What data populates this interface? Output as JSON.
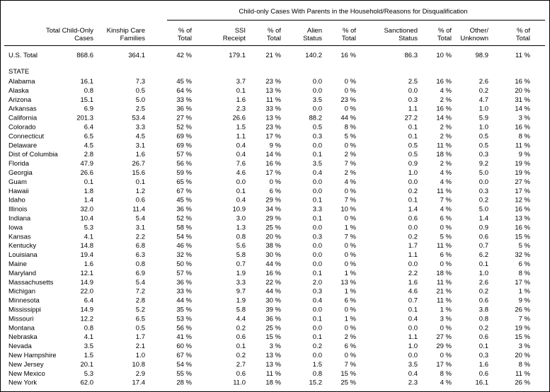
{
  "table": {
    "group_header": "Child-only Cases With Parents in the Household/Reasons for Disqualification",
    "columns": [
      [
        "Total Child-Only",
        "Cases"
      ],
      [
        "Kinship Care",
        "Families"
      ],
      [
        "% of",
        "Total"
      ],
      [
        "SSI",
        "Receipt"
      ],
      [
        "% of",
        "Total"
      ],
      [
        "Alien",
        "Status"
      ],
      [
        "% of",
        "Total"
      ],
      [
        "Sanctioned",
        "Status"
      ],
      [
        "% of",
        "Total"
      ],
      [
        "Other/",
        "Unknown"
      ],
      [
        "% of",
        "Total"
      ]
    ],
    "total_row": [
      "U.S. Total",
      "868.6",
      "364.1",
      "42 %",
      "179.1",
      "21 %",
      "140.2",
      "16 %",
      "86.3",
      "10 %",
      "98.9",
      "11 %"
    ],
    "section_label": "STATE",
    "rows": [
      [
        "Alabama",
        "16.1",
        "7.3",
        "45 %",
        "3.7",
        "23 %",
        "0.0",
        "0 %",
        "2.5",
        "16 %",
        "2.6",
        "16 %"
      ],
      [
        "Alaska",
        "0.8",
        "0.5",
        "64 %",
        "0.1",
        "13 %",
        "0.0",
        "0 %",
        "0.0",
        "4 %",
        "0.2",
        "20 %"
      ],
      [
        "Arizona",
        "15.1",
        "5.0",
        "33 %",
        "1.6",
        "11 %",
        "3.5",
        "23 %",
        "0.3",
        "2 %",
        "4.7",
        "31 %"
      ],
      [
        "Arkansas",
        "6.9",
        "2.5",
        "36 %",
        "2.3",
        "33 %",
        "0.0",
        "0 %",
        "1.1",
        "16 %",
        "1.0",
        "14 %"
      ],
      [
        "California",
        "201.3",
        "53.4",
        "27 %",
        "26.6",
        "13 %",
        "88.2",
        "44 %",
        "27.2",
        "14 %",
        "5.9",
        "3 %"
      ],
      [
        "Colorado",
        "6.4",
        "3.3",
        "52 %",
        "1.5",
        "23 %",
        "0.5",
        "8 %",
        "0.1",
        "2 %",
        "1.0",
        "16 %"
      ],
      [
        "Connecticut",
        "6.5",
        "4.5",
        "69 %",
        "1.1",
        "17 %",
        "0.3",
        "5 %",
        "0.1",
        "2 %",
        "0.5",
        "8 %"
      ],
      [
        "Delaware",
        "4.5",
        "3.1",
        "69 %",
        "0.4",
        "9 %",
        "0.0",
        "0 %",
        "0.5",
        "11 %",
        "0.5",
        "11 %"
      ],
      [
        "Dist of Columbia",
        "2.8",
        "1.6",
        "57 %",
        "0.4",
        "14 %",
        "0.1",
        "2 %",
        "0.5",
        "18 %",
        "0.3",
        "9 %"
      ],
      [
        "Florida",
        "47.9",
        "26.7",
        "56 %",
        "7.6",
        "16 %",
        "3.5",
        "7 %",
        "0.9",
        "2 %",
        "9.2",
        "19 %"
      ],
      [
        "Georgia",
        "26.6",
        "15.6",
        "59 %",
        "4.6",
        "17 %",
        "0.4",
        "2 %",
        "1.0",
        "4 %",
        "5.0",
        "19 %"
      ],
      [
        "Guam",
        "0.1",
        "0.1",
        "65 %",
        "0.0",
        "0 %",
        "0.0",
        "4 %",
        "0.0",
        "4 %",
        "0.0",
        "27 %"
      ],
      [
        "Hawaii",
        "1.8",
        "1.2",
        "67 %",
        "0.1",
        "6 %",
        "0.0",
        "0 %",
        "0.2",
        "11 %",
        "0.3",
        "17 %"
      ],
      [
        "Idaho",
        "1.4",
        "0.6",
        "45 %",
        "0.4",
        "29 %",
        "0.1",
        "7 %",
        "0.1",
        "7 %",
        "0.2",
        "12 %"
      ],
      [
        "Illinois",
        "32.0",
        "11.4",
        "36 %",
        "10.9",
        "34 %",
        "3.3",
        "10 %",
        "1.4",
        "4 %",
        "5.0",
        "16 %"
      ],
      [
        "Indiana",
        "10.4",
        "5.4",
        "52 %",
        "3.0",
        "29 %",
        "0.1",
        "0 %",
        "0.6",
        "6 %",
        "1.4",
        "13 %"
      ],
      [
        "Iowa",
        "5.3",
        "3.1",
        "58 %",
        "1.3",
        "25 %",
        "0.0",
        "1 %",
        "0.0",
        "0 %",
        "0.9",
        "16 %"
      ],
      [
        "Kansas",
        "4.1",
        "2.2",
        "54 %",
        "0.8",
        "20 %",
        "0.3",
        "7 %",
        "0.2",
        "5 %",
        "0.6",
        "15 %"
      ],
      [
        "Kentucky",
        "14.8",
        "6.8",
        "46 %",
        "5.6",
        "38 %",
        "0.0",
        "0 %",
        "1.7",
        "11 %",
        "0.7",
        "5 %"
      ],
      [
        "Louisiana",
        "19.4",
        "6.3",
        "32 %",
        "5.8",
        "30 %",
        "0.0",
        "0 %",
        "1.1",
        "6 %",
        "6.2",
        "32 %"
      ],
      [
        "Maine",
        "1.6",
        "0.8",
        "50 %",
        "0.7",
        "44 %",
        "0.0",
        "0 %",
        "0.0",
        "0 %",
        "0.1",
        "6 %"
      ],
      [
        "Maryland",
        "12.1",
        "6.9",
        "57 %",
        "1.9",
        "16 %",
        "0.1",
        "1 %",
        "2.2",
        "18 %",
        "1.0",
        "8 %"
      ],
      [
        "Massachusetts",
        "14.9",
        "5.4",
        "36 %",
        "3.3",
        "22 %",
        "2.0",
        "13 %",
        "1.6",
        "11 %",
        "2.6",
        "17 %"
      ],
      [
        "Michigan",
        "22.0",
        "7.2",
        "33 %",
        "9.7",
        "44 %",
        "0.3",
        "1 %",
        "4.6",
        "21 %",
        "0.2",
        "1 %"
      ],
      [
        "Minnesota",
        "6.4",
        "2.8",
        "44 %",
        "1.9",
        "30 %",
        "0.4",
        "6 %",
        "0.7",
        "11 %",
        "0.6",
        "9 %"
      ],
      [
        "Mississippi",
        "14.9",
        "5.2",
        "35 %",
        "5.8",
        "39 %",
        "0.0",
        "0 %",
        "0.1",
        "1 %",
        "3.8",
        "26 %"
      ],
      [
        "Missouri",
        "12.2",
        "6.5",
        "53 %",
        "4.4",
        "36 %",
        "0.1",
        "1 %",
        "0.4",
        "3 %",
        "0.8",
        "7 %"
      ],
      [
        "Montana",
        "0.8",
        "0.5",
        "56 %",
        "0.2",
        "25 %",
        "0.0",
        "0 %",
        "0.0",
        "0 %",
        "0.2",
        "19 %"
      ],
      [
        "Nebraska",
        "4.1",
        "1.7",
        "41 %",
        "0.6",
        "15 %",
        "0.1",
        "2 %",
        "1.1",
        "27 %",
        "0.6",
        "15 %"
      ],
      [
        "Nevada",
        "3.5",
        "2.1",
        "60 %",
        "0.1",
        "3 %",
        "0.2",
        "6 %",
        "1.0",
        "29 %",
        "0.1",
        "3 %"
      ],
      [
        "New Hampshire",
        "1.5",
        "1.0",
        "67 %",
        "0.2",
        "13 %",
        "0.0",
        "0 %",
        "0.0",
        "0 %",
        "0.3",
        "20 %"
      ],
      [
        "New Jersey",
        "20.1",
        "10.8",
        "54 %",
        "2.7",
        "13 %",
        "1.5",
        "7 %",
        "3.5",
        "17 %",
        "1.6",
        "8 %"
      ],
      [
        "New Mexico",
        "5.3",
        "2.9",
        "55 %",
        "0.6",
        "11 %",
        "0.8",
        "15 %",
        "0.4",
        "8 %",
        "0.6",
        "11 %"
      ],
      [
        "New York",
        "62.0",
        "17.4",
        "28 %",
        "11.0",
        "18 %",
        "15.2",
        "25 %",
        "2.3",
        "4 %",
        "16.1",
        "26 %"
      ]
    ]
  }
}
